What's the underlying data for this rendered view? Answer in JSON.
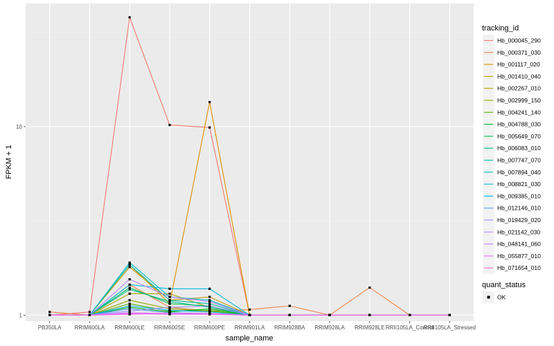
{
  "chart_data": {
    "type": "line",
    "xlabel": "sample_name",
    "ylabel": "FPKM + 1",
    "y_scale": "log10",
    "ylim": [
      0.93,
      45
    ],
    "y_ticks": [
      {
        "value": 1,
        "label": "1"
      },
      {
        "value": 10,
        "label": "10"
      }
    ],
    "grid": true,
    "legend_position": "right",
    "categories": [
      "PB350LA",
      "RRIM600LA",
      "RRIM600LE",
      "RRIM600SE",
      "RRIM600PE",
      "RRIM901LA",
      "RRIM928BA",
      "RRIM928LA",
      "RRIM928LE",
      "RRII105LA_Control",
      "RRII105LA_Stressed"
    ],
    "legend_title": "tracking_id",
    "shape_legend": {
      "title": "quant_status",
      "items": [
        "OK"
      ]
    },
    "series": [
      {
        "name": "Hb_000045_290",
        "color": "#F8766D",
        "values": [
          1,
          1.04,
          38,
          10.2,
          9.9,
          1,
          1,
          1,
          1,
          1,
          1
        ]
      },
      {
        "name": "Hb_000371_030",
        "color": "#EE8043",
        "values": [
          1.04,
          1,
          1.45,
          1.1,
          1.05,
          1.07,
          1.12,
          1,
          1.4,
          1,
          1
        ]
      },
      {
        "name": "Hb_001117_020",
        "color": "#DF8D00",
        "values": [
          1,
          1,
          1.85,
          1.15,
          13.5,
          1,
          1,
          1,
          1,
          1,
          1
        ]
      },
      {
        "name": "Hb_001410_040",
        "color": "#CB9700",
        "values": [
          1,
          1,
          1.8,
          1.2,
          1.25,
          1,
          1,
          1,
          1,
          1,
          1
        ]
      },
      {
        "name": "Hb_002267_010",
        "color": "#B0A000",
        "values": [
          1,
          1,
          1.3,
          1.3,
          1.1,
          1,
          1,
          1,
          1,
          1,
          1
        ]
      },
      {
        "name": "Hb_002999_150",
        "color": "#8EA900",
        "values": [
          1,
          1,
          1.2,
          1.08,
          1.05,
          1,
          1,
          1,
          1,
          1,
          1
        ]
      },
      {
        "name": "Hb_004241_140",
        "color": "#53B400",
        "values": [
          1,
          1,
          1.15,
          1.05,
          1.06,
          1,
          1,
          1,
          1,
          1,
          1
        ]
      },
      {
        "name": "Hb_004788_030",
        "color": "#00B813",
        "values": [
          1,
          1,
          1.1,
          1.04,
          1.08,
          1,
          1,
          1,
          1,
          1,
          1
        ]
      },
      {
        "name": "Hb_005649_070",
        "color": "#00BC56",
        "values": [
          1,
          1,
          1.4,
          1.15,
          1.12,
          1,
          1,
          1,
          1,
          1,
          1
        ]
      },
      {
        "name": "Hb_006083_010",
        "color": "#00BE83",
        "values": [
          1,
          1,
          1.37,
          1.18,
          1.1,
          1,
          1,
          1,
          1,
          1,
          1
        ]
      },
      {
        "name": "Hb_007747_070",
        "color": "#00BFA8",
        "values": [
          1,
          1,
          1.85,
          1.2,
          1.15,
          1,
          1,
          1,
          1,
          1,
          1
        ]
      },
      {
        "name": "Hb_007894_040",
        "color": "#00BDC6",
        "values": [
          1,
          1,
          1.9,
          1.25,
          1.2,
          1,
          1,
          1,
          1,
          1,
          1
        ]
      },
      {
        "name": "Hb_008821_030",
        "color": "#00B8E0",
        "values": [
          1,
          1,
          1.45,
          1.38,
          1.38,
          1,
          1,
          1,
          1,
          1,
          1
        ]
      },
      {
        "name": "Hb_009385_010",
        "color": "#00B0F6",
        "values": [
          1,
          1,
          1.12,
          1.06,
          1.04,
          1,
          1,
          1,
          1,
          1,
          1
        ]
      },
      {
        "name": "Hb_012146_010",
        "color": "#619CFF",
        "values": [
          1,
          1,
          1.08,
          1.03,
          1.02,
          1,
          1,
          1,
          1,
          1,
          1
        ]
      },
      {
        "name": "Hb_019429_020",
        "color": "#9590FF",
        "values": [
          1,
          1,
          1.05,
          1.1,
          1.12,
          1,
          1,
          1,
          1,
          1,
          1
        ]
      },
      {
        "name": "Hb_021142_030",
        "color": "#B983FF",
        "values": [
          1,
          1,
          1.55,
          1.25,
          1.18,
          1,
          1,
          1,
          1,
          1,
          1
        ]
      },
      {
        "name": "Hb_048141_060",
        "color": "#D277FF",
        "values": [
          1,
          1,
          1.03,
          1.02,
          1.01,
          1,
          1,
          1,
          1,
          1,
          1
        ]
      },
      {
        "name": "Hb_055877_010",
        "color": "#E76BF3",
        "values": [
          1,
          1,
          1.02,
          1.01,
          1.01,
          1,
          1,
          1,
          1,
          1,
          1
        ]
      },
      {
        "name": "Hb_071654_010",
        "color": "#F564E3",
        "values": [
          1,
          1,
          1.01,
          1.02,
          1.02,
          1,
          1,
          1,
          1,
          1,
          1
        ]
      }
    ]
  }
}
